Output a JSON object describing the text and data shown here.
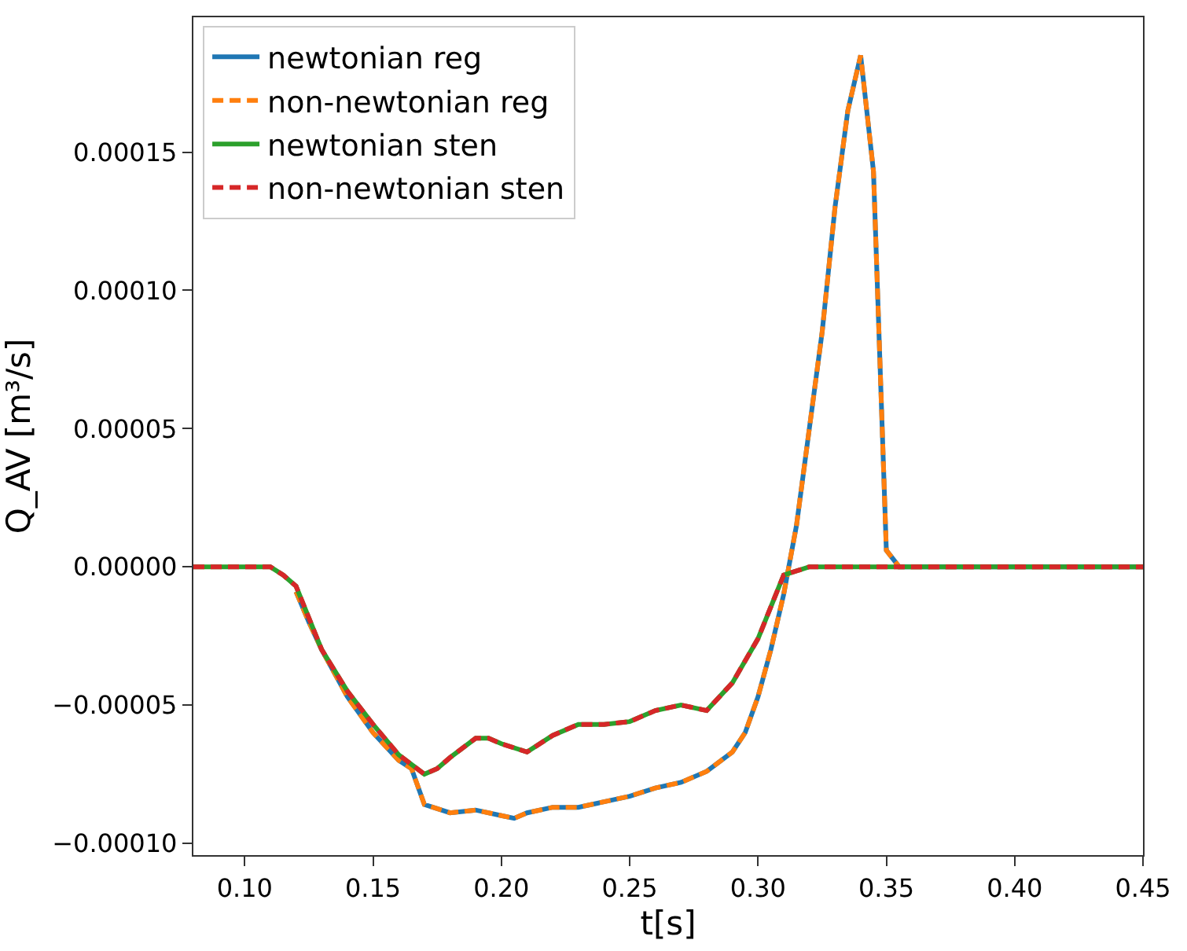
{
  "chart_data": {
    "type": "line",
    "xlabel": "t[s]",
    "ylabel": "Q_AV [m³/s]",
    "xlim": [
      0.08,
      0.45
    ],
    "ylim": [
      -0.0001043,
      0.0001988
    ],
    "xticks": [
      {
        "value": 0.1,
        "label": "0.10"
      },
      {
        "value": 0.15,
        "label": "0.15"
      },
      {
        "value": 0.2,
        "label": "0.20"
      },
      {
        "value": 0.25,
        "label": "0.25"
      },
      {
        "value": 0.3,
        "label": "0.30"
      },
      {
        "value": 0.35,
        "label": "0.35"
      },
      {
        "value": 0.4,
        "label": "0.40"
      },
      {
        "value": 0.45,
        "label": "0.45"
      }
    ],
    "yticks": [
      {
        "value": -0.0001,
        "label": "−0.00010"
      },
      {
        "value": -5e-05,
        "label": "−0.00005"
      },
      {
        "value": 0,
        "label": "0.00000"
      },
      {
        "value": 5e-05,
        "label": "0.00005"
      },
      {
        "value": 0.0001,
        "label": "0.00010"
      },
      {
        "value": 0.00015,
        "label": "0.00015"
      }
    ],
    "grid": false,
    "legend": "top left",
    "marker": "none",
    "series": [
      {
        "name": "newtonian reg",
        "color": "#1f77b4",
        "line_style": "solid",
        "x": [
          0.12,
          0.125,
          0.13,
          0.14,
          0.15,
          0.16,
          0.165,
          0.17,
          0.18,
          0.19,
          0.2,
          0.205,
          0.21,
          0.22,
          0.23,
          0.24,
          0.25,
          0.26,
          0.27,
          0.28,
          0.29,
          0.295,
          0.3,
          0.305,
          0.31,
          0.315,
          0.32,
          0.325,
          0.33,
          0.335,
          0.34,
          0.345,
          0.35,
          0.355,
          0.4,
          0.45
        ],
        "values": [
          -9e-06,
          -2e-05,
          -3e-05,
          -4.7e-05,
          -6e-05,
          -7e-05,
          -7.3e-05,
          -8.6e-05,
          -8.9e-05,
          -8.8e-05,
          -9e-05,
          -9.1e-05,
          -8.9e-05,
          -8.7e-05,
          -8.7e-05,
          -8.5e-05,
          -8.3e-05,
          -8e-05,
          -7.8e-05,
          -7.4e-05,
          -6.7e-05,
          -6e-05,
          -4.7e-05,
          -3e-05,
          -1e-05,
          1.5e-05,
          5e-05,
          8.5e-05,
          0.00013,
          0.000165,
          0.000185,
          0.000143,
          6e-06,
          0,
          0,
          0
        ]
      },
      {
        "name": "non-newtonian reg",
        "color": "#ff7f0e",
        "line_style": "dashed",
        "x": [
          0.12,
          0.125,
          0.13,
          0.14,
          0.15,
          0.16,
          0.165,
          0.17,
          0.18,
          0.19,
          0.2,
          0.205,
          0.21,
          0.22,
          0.23,
          0.24,
          0.25,
          0.26,
          0.27,
          0.28,
          0.29,
          0.295,
          0.3,
          0.305,
          0.31,
          0.315,
          0.32,
          0.325,
          0.33,
          0.335,
          0.34,
          0.345,
          0.35,
          0.355,
          0.4,
          0.45
        ],
        "values": [
          -9e-06,
          -2e-05,
          -3e-05,
          -4.7e-05,
          -6e-05,
          -7e-05,
          -7.3e-05,
          -8.6e-05,
          -8.9e-05,
          -8.8e-05,
          -9e-05,
          -9.1e-05,
          -8.9e-05,
          -8.7e-05,
          -8.7e-05,
          -8.5e-05,
          -8.3e-05,
          -8e-05,
          -7.8e-05,
          -7.4e-05,
          -6.7e-05,
          -6e-05,
          -4.7e-05,
          -3e-05,
          -1e-05,
          1.5e-05,
          5e-05,
          8.5e-05,
          0.00013,
          0.000165,
          0.000185,
          0.000143,
          6e-06,
          0,
          0,
          0
        ]
      },
      {
        "name": "newtonian sten",
        "color": "#2ca02c",
        "line_style": "solid",
        "x": [
          0.08,
          0.1,
          0.11,
          0.115,
          0.12,
          0.13,
          0.14,
          0.15,
          0.16,
          0.17,
          0.175,
          0.18,
          0.19,
          0.195,
          0.2,
          0.21,
          0.22,
          0.23,
          0.24,
          0.25,
          0.26,
          0.27,
          0.28,
          0.29,
          0.3,
          0.31,
          0.32,
          0.35,
          0.4,
          0.45
        ],
        "values": [
          0,
          0,
          0,
          -3e-06,
          -7e-06,
          -3e-05,
          -4.5e-05,
          -5.7e-05,
          -6.8e-05,
          -7.5e-05,
          -7.3e-05,
          -6.9e-05,
          -6.2e-05,
          -6.2e-05,
          -6.4e-05,
          -6.7e-05,
          -6.1e-05,
          -5.7e-05,
          -5.7e-05,
          -5.6e-05,
          -5.2e-05,
          -5e-05,
          -5.2e-05,
          -4.2e-05,
          -2.6e-05,
          -3e-06,
          0,
          0,
          0,
          0
        ]
      },
      {
        "name": "non-newtonian sten",
        "color": "#d62728",
        "line_style": "dashed",
        "x": [
          0.08,
          0.1,
          0.11,
          0.115,
          0.12,
          0.13,
          0.14,
          0.15,
          0.16,
          0.17,
          0.175,
          0.18,
          0.19,
          0.195,
          0.2,
          0.21,
          0.22,
          0.23,
          0.24,
          0.25,
          0.26,
          0.27,
          0.28,
          0.29,
          0.3,
          0.31,
          0.32,
          0.35,
          0.4,
          0.45
        ],
        "values": [
          0,
          0,
          0,
          -3e-06,
          -7e-06,
          -3e-05,
          -4.5e-05,
          -5.7e-05,
          -6.8e-05,
          -7.5e-05,
          -7.3e-05,
          -6.9e-05,
          -6.2e-05,
          -6.2e-05,
          -6.4e-05,
          -6.7e-05,
          -6.1e-05,
          -5.7e-05,
          -5.7e-05,
          -5.6e-05,
          -5.2e-05,
          -5e-05,
          -5.2e-05,
          -4.2e-05,
          -2.6e-05,
          -3e-06,
          0,
          0,
          0,
          0
        ]
      }
    ]
  }
}
